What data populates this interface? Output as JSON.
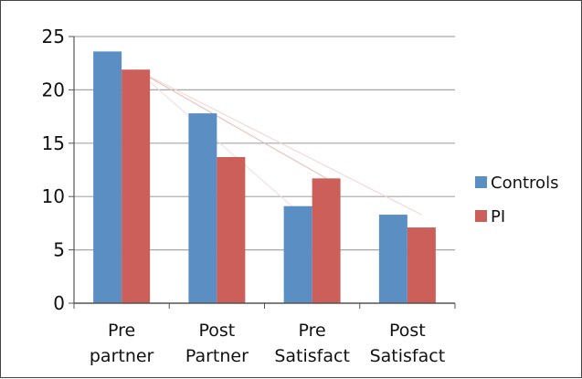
{
  "chart_data": {
    "type": "bar",
    "categories": [
      [
        "Pre",
        "partner"
      ],
      [
        "Post",
        "Partner"
      ],
      [
        "Pre",
        "Satisfact"
      ],
      [
        "Post",
        "Satisfact"
      ]
    ],
    "series": [
      {
        "name": "Controls",
        "color": "#5b8fc4",
        "values": [
          23.6,
          17.8,
          9.1,
          8.3
        ]
      },
      {
        "name": "PI",
        "color": "#cd5f5b",
        "values": [
          21.9,
          13.7,
          11.7,
          7.1
        ]
      }
    ],
    "yticks": [
      0,
      5,
      10,
      15,
      20,
      25
    ],
    "ylim": [
      0,
      25
    ],
    "grid": true,
    "legend_position": "right"
  }
}
